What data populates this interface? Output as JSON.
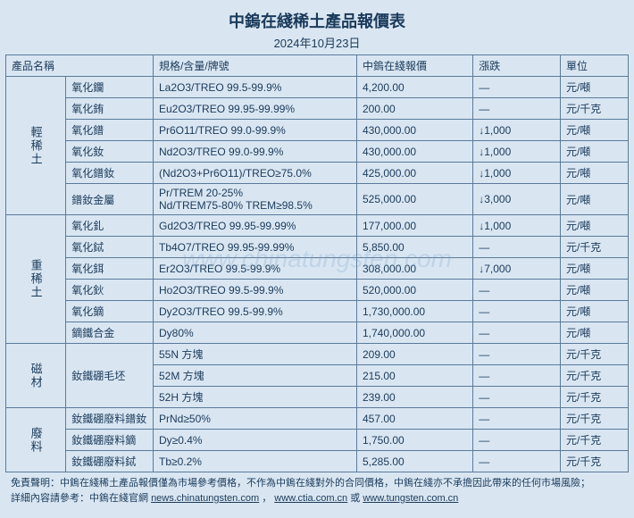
{
  "title": "中鎢在綫稀土產品報價表",
  "date": "2024年10月23日",
  "watermark": "www.chinatungsten.com",
  "headers": {
    "name": "產品名稱",
    "spec": "規格/含量/牌號",
    "price": "中鎢在綫報價",
    "change": "漲跌",
    "unit": "單位"
  },
  "groups": [
    {
      "label": "輕稀土",
      "rows": [
        {
          "name": "氧化鑭",
          "spec": "La2O3/TREO 99.5-99.9%",
          "price": "4,200.00",
          "change": "—",
          "unit": "元/噸"
        },
        {
          "name": "氧化銪",
          "spec": "Eu2O3/TREO 99.95-99.99%",
          "price": "200.00",
          "change": "—",
          "unit": "元/千克"
        },
        {
          "name": "氧化鐠",
          "spec": "Pr6O11/TREO 99.0-99.9%",
          "price": "430,000.00",
          "change": "↓1,000",
          "unit": "元/噸"
        },
        {
          "name": "氧化釹",
          "spec": "Nd2O3/TREO 99.0-99.9%",
          "price": "430,000.00",
          "change": "↓1,000",
          "unit": "元/噸"
        },
        {
          "name": "氧化鐠釹",
          "spec": "(Nd2O3+Pr6O11)/TREO≥75.0%",
          "price": "425,000.00",
          "change": "↓1,000",
          "unit": "元/噸"
        },
        {
          "name": "鐠釹金屬",
          "spec": "Pr/TREM 20-25%\nNd/TREM75-80% TREM≥98.5%",
          "price": "525,000.00",
          "change": "↓3,000",
          "unit": "元/噸"
        }
      ]
    },
    {
      "label": "重稀土",
      "rows": [
        {
          "name": "氧化釓",
          "spec": "Gd2O3/TREO 99.95-99.99%",
          "price": "177,000.00",
          "change": "↓1,000",
          "unit": "元/噸"
        },
        {
          "name": "氧化鋱",
          "spec": "Tb4O7/TREO 99.95-99.99%",
          "price": "5,850.00",
          "change": "—",
          "unit": "元/千克"
        },
        {
          "name": "氧化鉺",
          "spec": "Er2O3/TREO 99.5-99.9%",
          "price": "308,000.00",
          "change": "↓7,000",
          "unit": "元/噸"
        },
        {
          "name": "氧化鈥",
          "spec": "Ho2O3/TREO 99.5-99.9%",
          "price": "520,000.00",
          "change": "—",
          "unit": "元/噸"
        },
        {
          "name": "氧化鏑",
          "spec": "Dy2O3/TREO 99.5-99.9%",
          "price": "1,730,000.00",
          "change": "—",
          "unit": "元/噸"
        },
        {
          "name": "鏑鐵合金",
          "spec": "Dy80%",
          "price": "1,740,000.00",
          "change": "—",
          "unit": "元/噸"
        }
      ]
    },
    {
      "label": "磁材",
      "rows": [
        {
          "name": "釹鐵硼毛坯",
          "spec": "55N 方塊",
          "price": "209.00",
          "change": "—",
          "unit": "元/千克",
          "rowspan": 3
        },
        {
          "spec": "52M 方塊",
          "price": "215.00",
          "change": "—",
          "unit": "元/千克"
        },
        {
          "spec": "52H 方塊",
          "price": "239.00",
          "change": "—",
          "unit": "元/千克"
        }
      ]
    },
    {
      "label": "廢料",
      "rows": [
        {
          "name": "釹鐵硼廢料鐠釹",
          "spec": "PrNd≥50%",
          "price": "457.00",
          "change": "—",
          "unit": "元/千克"
        },
        {
          "name": "釹鐵硼廢料鏑",
          "spec": "Dy≥0.4%",
          "price": "1,750.00",
          "change": "—",
          "unit": "元/千克"
        },
        {
          "name": "釹鐵硼廢料鋱",
          "spec": "Tb≥0.2%",
          "price": "5,285.00",
          "change": "—",
          "unit": "元/千克"
        }
      ]
    }
  ],
  "footer": {
    "line1_prefix": "免責聲明：中鎢在綫稀土產品報價僅為市場參考價格，不作為中鎢在綫對外的合同價格，中鎢在綫亦不承擔因此帶來的任何市場風險；",
    "line2_prefix": "詳細內容請參考：中鎢在綫官網 ",
    "link1": "news.chinatungsten.com",
    "mid": "，",
    "link2": "www.ctia.com.cn",
    "or": " 或 ",
    "link3": "www.tungsten.com.cn"
  }
}
